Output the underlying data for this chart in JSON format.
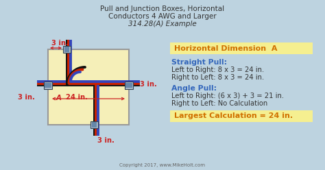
{
  "title_line1": "Pull and Junction Boxes, Horizontal",
  "title_line2": "Conductors 4 AWG and Larger",
  "title_line3": "314.28(A) Example",
  "bg_color": "#bdd3e0",
  "box_fill": "#f5efb8",
  "box_stroke": "#999999",
  "label_color": "#cc2222",
  "label_3in_top": "3 in.",
  "label_3in_right": "3 in.",
  "label_3in_left": "3 in.",
  "label_3in_bottom": "3 in.",
  "label_24in": "24 in.",
  "label_A": "A",
  "horiz_dim_label": "Horizontal Dimension  A",
  "horiz_dim_color": "#d07000",
  "straight_pull_label": "Straight Pull:",
  "straight_pull_color": "#3366bb",
  "straight_pull_line1": "Left to Right: 8 x 3 = 24 in.",
  "straight_pull_line2": "Right to Left: 8 x 3 = 24 in.",
  "angle_pull_label": "Angle Pull:",
  "angle_pull_color": "#3366bb",
  "angle_pull_line1": "Left to Right: (6 x 3) + 3 = 21 in.",
  "angle_pull_line2": "Right to Left: No Calculation",
  "largest_calc": "Largest Calculation = 24 in.",
  "largest_calc_bg": "#f5ef90",
  "largest_calc_color": "#d07000",
  "horiz_dim_bg": "#f5ef90",
  "copyright": "Copyright 2017, www.MikeHolt.com",
  "text_color_dark": "#333333",
  "wire_red": "#cc2200",
  "wire_blue": "#3344bb",
  "wire_black": "#111111",
  "connector_fill": "#6688aa",
  "connector_edge": "#334455",
  "connector_light": "#aabbcc"
}
